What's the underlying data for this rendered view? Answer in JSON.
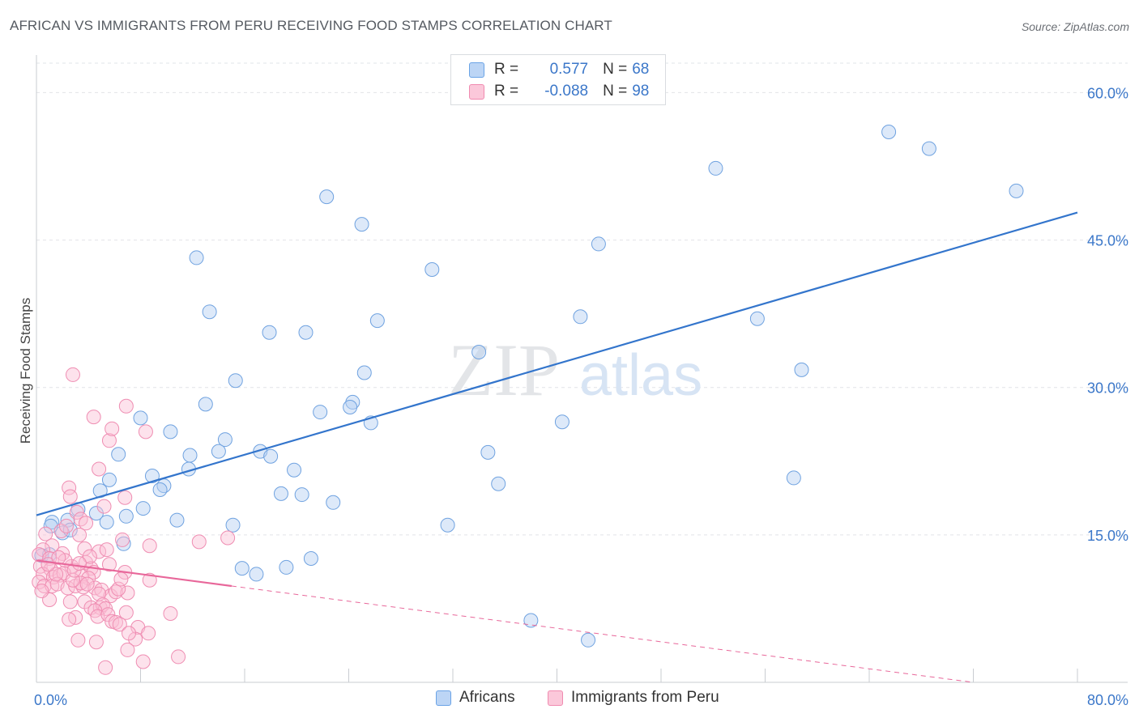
{
  "title": "AFRICAN VS IMMIGRANTS FROM PERU RECEIVING FOOD STAMPS CORRELATION CHART",
  "source": "Source: ZipAtlas.com",
  "watermark": {
    "zip": "ZIP",
    "atlas": "atlas"
  },
  "legend": {
    "r_label": "R =",
    "n_label": "N =",
    "rows": [
      {
        "r": "0.577",
        "n": "68",
        "color": "#6aa3e6",
        "fill": "#bcd5f5"
      },
      {
        "r": "-0.088",
        "n": "98",
        "color": "#f08ab0",
        "fill": "#fbc8da"
      }
    ]
  },
  "bottom_legend": [
    {
      "label": "Africans",
      "color": "#6aa3e6",
      "fill": "#bcd5f5"
    },
    {
      "label": "Immigrants from Peru",
      "color": "#f08ab0",
      "fill": "#fbc8da"
    }
  ],
  "chart_data": {
    "type": "scatter",
    "ylabel": "Receiving Food Stamps",
    "xlim": [
      0,
      80
    ],
    "ylim": [
      0,
      63
    ],
    "x_tick_labels": [
      "0.0%",
      "80.0%"
    ],
    "y_ticks": [
      15,
      30,
      45,
      60
    ],
    "y_tick_labels": [
      "15.0%",
      "30.0%",
      "45.0%",
      "60.0%"
    ],
    "grid": "horizontal dashed",
    "series": [
      {
        "name": "Africans",
        "color": "#3b77c9",
        "points": [
          [
            65.5,
            56.0
          ],
          [
            68.6,
            54.3
          ],
          [
            52.2,
            52.3
          ],
          [
            75.3,
            50.0
          ],
          [
            22.3,
            49.4
          ],
          [
            25.0,
            46.6
          ],
          [
            43.2,
            44.6
          ],
          [
            12.3,
            43.2
          ],
          [
            30.4,
            42.0
          ],
          [
            13.3,
            37.7
          ],
          [
            17.9,
            35.6
          ],
          [
            20.7,
            35.6
          ],
          [
            26.2,
            36.8
          ],
          [
            41.8,
            37.2
          ],
          [
            55.4,
            37.0
          ],
          [
            34.0,
            33.6
          ],
          [
            25.2,
            31.5
          ],
          [
            58.8,
            31.8
          ],
          [
            15.3,
            30.7
          ],
          [
            13.0,
            28.3
          ],
          [
            21.8,
            27.5
          ],
          [
            24.3,
            28.5
          ],
          [
            24.1,
            28.0
          ],
          [
            25.7,
            26.4
          ],
          [
            40.4,
            26.5
          ],
          [
            8.0,
            26.9
          ],
          [
            10.3,
            25.5
          ],
          [
            6.3,
            23.2
          ],
          [
            11.8,
            23.1
          ],
          [
            14.0,
            23.5
          ],
          [
            14.5,
            24.7
          ],
          [
            17.2,
            23.5
          ],
          [
            18.0,
            23.0
          ],
          [
            34.7,
            23.4
          ],
          [
            11.7,
            21.7
          ],
          [
            19.8,
            21.6
          ],
          [
            5.6,
            20.6
          ],
          [
            8.9,
            21.0
          ],
          [
            9.8,
            20.0
          ],
          [
            9.5,
            19.6
          ],
          [
            4.9,
            19.5
          ],
          [
            18.8,
            19.2
          ],
          [
            20.4,
            19.1
          ],
          [
            22.8,
            18.3
          ],
          [
            35.5,
            20.2
          ],
          [
            58.2,
            20.8
          ],
          [
            8.2,
            17.7
          ],
          [
            3.2,
            17.6
          ],
          [
            4.6,
            17.2
          ],
          [
            1.2,
            16.3
          ],
          [
            2.4,
            16.5
          ],
          [
            5.4,
            16.3
          ],
          [
            6.9,
            16.9
          ],
          [
            10.8,
            16.5
          ],
          [
            15.1,
            16.0
          ],
          [
            31.6,
            16.0
          ],
          [
            2.0,
            15.2
          ],
          [
            6.7,
            14.1
          ],
          [
            2.6,
            15.5
          ],
          [
            1.1,
            15.9
          ],
          [
            0.4,
            12.9
          ],
          [
            1.0,
            13.0
          ],
          [
            15.8,
            11.6
          ],
          [
            16.9,
            11.0
          ],
          [
            19.2,
            11.7
          ],
          [
            21.1,
            12.6
          ],
          [
            38.0,
            6.3
          ],
          [
            42.4,
            4.3
          ]
        ]
      },
      {
        "name": "Immigrants from Peru",
        "color": "#e8679a",
        "points": [
          [
            2.8,
            31.3
          ],
          [
            6.9,
            28.1
          ],
          [
            4.4,
            27.0
          ],
          [
            8.4,
            25.5
          ],
          [
            5.6,
            24.6
          ],
          [
            5.8,
            25.8
          ],
          [
            4.8,
            21.7
          ],
          [
            2.5,
            19.8
          ],
          [
            6.8,
            18.8
          ],
          [
            2.6,
            18.9
          ],
          [
            3.1,
            17.3
          ],
          [
            5.2,
            17.9
          ],
          [
            3.4,
            16.6
          ],
          [
            3.8,
            16.2
          ],
          [
            1.9,
            15.4
          ],
          [
            2.3,
            15.9
          ],
          [
            0.7,
            15.1
          ],
          [
            3.3,
            15.0
          ],
          [
            12.5,
            14.3
          ],
          [
            14.7,
            14.7
          ],
          [
            6.6,
            14.5
          ],
          [
            8.7,
            13.9
          ],
          [
            3.7,
            13.6
          ],
          [
            2.0,
            13.1
          ],
          [
            1.2,
            13.9
          ],
          [
            0.5,
            13.5
          ],
          [
            0.2,
            13.0
          ],
          [
            1.0,
            12.6
          ],
          [
            4.8,
            13.3
          ],
          [
            5.4,
            13.5
          ],
          [
            0.3,
            11.8
          ],
          [
            1.1,
            11.5
          ],
          [
            2.7,
            11.8
          ],
          [
            3.8,
            12.2
          ],
          [
            4.2,
            11.6
          ],
          [
            4.4,
            11.2
          ],
          [
            0.5,
            11.0
          ],
          [
            1.3,
            10.7
          ],
          [
            1.8,
            10.9
          ],
          [
            2.1,
            11.1
          ],
          [
            3.5,
            10.8
          ],
          [
            4.0,
            10.6
          ],
          [
            0.2,
            10.2
          ],
          [
            0.6,
            9.8
          ],
          [
            1.2,
            9.8
          ],
          [
            1.6,
            10.0
          ],
          [
            2.4,
            9.6
          ],
          [
            3.0,
            9.8
          ],
          [
            3.6,
            9.7
          ],
          [
            4.5,
            9.6
          ],
          [
            5.0,
            9.4
          ],
          [
            5.7,
            8.8
          ],
          [
            6.1,
            9.2
          ],
          [
            7.0,
            9.1
          ],
          [
            6.3,
            9.5
          ],
          [
            4.8,
            9.0
          ],
          [
            8.7,
            10.4
          ],
          [
            3.4,
            10.1
          ],
          [
            2.8,
            10.4
          ],
          [
            1.0,
            8.4
          ],
          [
            2.6,
            8.2
          ],
          [
            3.7,
            8.2
          ],
          [
            4.2,
            7.6
          ],
          [
            4.9,
            7.6
          ],
          [
            5.1,
            7.9
          ],
          [
            5.3,
            7.5
          ],
          [
            4.5,
            7.3
          ],
          [
            4.7,
            6.7
          ],
          [
            5.5,
            6.9
          ],
          [
            5.8,
            6.2
          ],
          [
            6.9,
            7.1
          ],
          [
            10.3,
            7.0
          ],
          [
            3.0,
            6.6
          ],
          [
            2.5,
            6.4
          ],
          [
            6.1,
            6.1
          ],
          [
            6.4,
            5.9
          ],
          [
            7.8,
            5.6
          ],
          [
            4.6,
            4.1
          ],
          [
            7.6,
            4.4
          ],
          [
            7.1,
            5.0
          ],
          [
            8.6,
            5.0
          ],
          [
            3.2,
            4.3
          ],
          [
            7.0,
            3.3
          ],
          [
            8.2,
            2.1
          ],
          [
            5.3,
            1.5
          ],
          [
            10.9,
            2.6
          ],
          [
            0.4,
            9.3
          ],
          [
            1.5,
            11.0
          ],
          [
            3.9,
            10.0
          ],
          [
            6.8,
            11.2
          ],
          [
            2.2,
            12.4
          ],
          [
            4.1,
            12.8
          ],
          [
            0.9,
            12.0
          ],
          [
            1.7,
            12.7
          ],
          [
            2.9,
            11.4
          ],
          [
            3.3,
            12.1
          ],
          [
            5.6,
            12.0
          ],
          [
            6.5,
            10.5
          ]
        ]
      }
    ],
    "trendlines": [
      {
        "series": "Africans",
        "x": [
          0,
          80
        ],
        "y": [
          17.0,
          47.8
        ],
        "style": "solid"
      },
      {
        "series": "Immigrants from Peru",
        "x": [
          0,
          15
        ],
        "y": [
          12.4,
          9.8
        ],
        "style": "solid"
      },
      {
        "series": "Immigrants from Peru",
        "x": [
          15,
          72
        ],
        "y": [
          9.8,
          0.0
        ],
        "style": "dashed"
      }
    ]
  }
}
